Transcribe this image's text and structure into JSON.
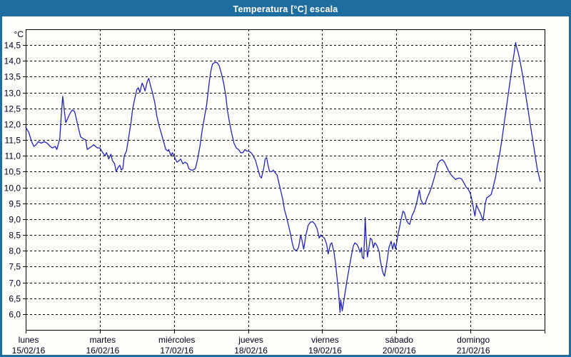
{
  "window": {
    "title": "Temperatura [°C] escala"
  },
  "colors": {
    "titlebar": "#1e6d9e",
    "window_border": "#1e6d9e",
    "line": "#2424b4",
    "grid": "#000000",
    "frame": "#000000",
    "text": "#00001e",
    "background": "#fdfdfa"
  },
  "chart_data": {
    "type": "line",
    "title": "Temperatura [°C] escala",
    "ylabel": "°C",
    "unit_label": "°C",
    "ylim": [
      5.5,
      15.0
    ],
    "xlim_days": [
      0,
      7
    ],
    "grid": "dashed",
    "legend_position": "none",
    "y_tick_values": [
      14.5,
      14.0,
      13.5,
      13.0,
      12.5,
      12.0,
      11.5,
      11.0,
      10.5,
      10.0,
      9.5,
      9.0,
      8.5,
      8.0,
      7.5,
      7.0,
      6.5,
      6.0
    ],
    "y_tick_labels": [
      "14,5",
      "14,0",
      "13,5",
      "13,0",
      "12,5",
      "12,0",
      "11,5",
      "11,0",
      "10,5",
      "10,0",
      "9,5",
      "9,0",
      "8,5",
      "8,0",
      "7,5",
      "7,0",
      "6,5",
      "6,0"
    ],
    "x_ticks": [
      {
        "day": "lunes",
        "date": "15/02/16"
      },
      {
        "day": "martes",
        "date": "16/02/16"
      },
      {
        "day": "miércoles",
        "date": "17/02/16"
      },
      {
        "day": "jueves",
        "date": "18/02/16"
      },
      {
        "day": "viernes",
        "date": "19/02/16"
      },
      {
        "day": "sábado",
        "date": "20/02/16"
      },
      {
        "day": "domingo",
        "date": "21/02/16"
      }
    ],
    "series": [
      {
        "name": "Temperatura [°C]",
        "x_unit": "days since lunes 15/02/16 00:00",
        "points": [
          [
            0.0,
            11.9
          ],
          [
            0.04,
            11.75
          ],
          [
            0.08,
            11.45
          ],
          [
            0.11,
            11.3
          ],
          [
            0.14,
            11.35
          ],
          [
            0.17,
            11.45
          ],
          [
            0.21,
            11.4
          ],
          [
            0.25,
            11.45
          ],
          [
            0.29,
            11.4
          ],
          [
            0.33,
            11.3
          ],
          [
            0.36,
            11.25
          ],
          [
            0.4,
            11.3
          ],
          [
            0.42,
            11.2
          ],
          [
            0.46,
            11.55
          ],
          [
            0.48,
            12.3
          ],
          [
            0.5,
            12.88
          ],
          [
            0.52,
            12.45
          ],
          [
            0.54,
            12.05
          ],
          [
            0.57,
            12.2
          ],
          [
            0.6,
            12.35
          ],
          [
            0.63,
            12.45
          ],
          [
            0.66,
            12.4
          ],
          [
            0.68,
            12.2
          ],
          [
            0.71,
            11.9
          ],
          [
            0.74,
            11.6
          ],
          [
            0.77,
            11.55
          ],
          [
            0.81,
            11.5
          ],
          [
            0.83,
            11.2
          ],
          [
            0.86,
            11.25
          ],
          [
            0.89,
            11.3
          ],
          [
            0.92,
            11.35
          ],
          [
            0.94,
            11.3
          ],
          [
            0.97,
            11.25
          ],
          [
            1.0,
            11.25
          ],
          [
            1.04,
            11.1
          ],
          [
            1.07,
            11.0
          ],
          [
            1.09,
            11.1
          ],
          [
            1.12,
            10.9
          ],
          [
            1.15,
            11.05
          ],
          [
            1.17,
            10.85
          ],
          [
            1.2,
            10.75
          ],
          [
            1.22,
            10.5
          ],
          [
            1.25,
            10.65
          ],
          [
            1.27,
            10.7
          ],
          [
            1.29,
            10.55
          ],
          [
            1.31,
            10.6
          ],
          [
            1.33,
            11.0
          ],
          [
            1.36,
            11.15
          ],
          [
            1.39,
            11.6
          ],
          [
            1.42,
            12.05
          ],
          [
            1.44,
            12.45
          ],
          [
            1.47,
            12.8
          ],
          [
            1.5,
            13.1
          ],
          [
            1.52,
            13.15
          ],
          [
            1.54,
            13.0
          ],
          [
            1.57,
            13.3
          ],
          [
            1.59,
            13.2
          ],
          [
            1.61,
            13.05
          ],
          [
            1.64,
            13.35
          ],
          [
            1.66,
            13.45
          ],
          [
            1.68,
            13.25
          ],
          [
            1.71,
            13.0
          ],
          [
            1.74,
            12.7
          ],
          [
            1.77,
            12.25
          ],
          [
            1.8,
            11.95
          ],
          [
            1.83,
            11.7
          ],
          [
            1.86,
            11.45
          ],
          [
            1.89,
            11.2
          ],
          [
            1.92,
            11.15
          ],
          [
            1.93,
            11.2
          ],
          [
            1.96,
            11.0
          ],
          [
            1.98,
            11.1
          ],
          [
            2.01,
            10.95
          ],
          [
            2.04,
            10.8
          ],
          [
            2.07,
            10.85
          ],
          [
            2.09,
            10.9
          ],
          [
            2.12,
            10.75
          ],
          [
            2.15,
            10.8
          ],
          [
            2.18,
            10.75
          ],
          [
            2.2,
            10.6
          ],
          [
            2.23,
            10.55
          ],
          [
            2.26,
            10.55
          ],
          [
            2.29,
            10.6
          ],
          [
            2.32,
            10.9
          ],
          [
            2.35,
            11.3
          ],
          [
            2.38,
            11.8
          ],
          [
            2.41,
            12.2
          ],
          [
            2.44,
            12.6
          ],
          [
            2.46,
            13.0
          ],
          [
            2.48,
            13.4
          ],
          [
            2.5,
            13.7
          ],
          [
            2.52,
            13.9
          ],
          [
            2.55,
            13.95
          ],
          [
            2.58,
            13.95
          ],
          [
            2.61,
            13.85
          ],
          [
            2.64,
            13.6
          ],
          [
            2.67,
            13.3
          ],
          [
            2.7,
            12.9
          ],
          [
            2.72,
            12.45
          ],
          [
            2.75,
            12.05
          ],
          [
            2.78,
            11.7
          ],
          [
            2.81,
            11.4
          ],
          [
            2.84,
            11.25
          ],
          [
            2.87,
            11.2
          ],
          [
            2.9,
            11.1
          ],
          [
            2.93,
            11.1
          ],
          [
            2.96,
            11.2
          ],
          [
            2.98,
            11.15
          ],
          [
            3.01,
            11.15
          ],
          [
            3.04,
            11.1
          ],
          [
            3.07,
            11.0
          ],
          [
            3.1,
            10.85
          ],
          [
            3.13,
            10.6
          ],
          [
            3.16,
            10.35
          ],
          [
            3.18,
            10.3
          ],
          [
            3.21,
            10.6
          ],
          [
            3.23,
            10.9
          ],
          [
            3.25,
            10.95
          ],
          [
            3.27,
            10.7
          ],
          [
            3.29,
            10.5
          ],
          [
            3.32,
            10.5
          ],
          [
            3.34,
            10.55
          ],
          [
            3.37,
            10.45
          ],
          [
            3.39,
            10.4
          ],
          [
            3.41,
            10.2
          ],
          [
            3.44,
            9.9
          ],
          [
            3.47,
            9.6
          ],
          [
            3.49,
            9.3
          ],
          [
            3.52,
            9.05
          ],
          [
            3.54,
            8.85
          ],
          [
            3.57,
            8.55
          ],
          [
            3.6,
            8.2
          ],
          [
            3.62,
            8.05
          ],
          [
            3.65,
            8.0
          ],
          [
            3.68,
            8.1
          ],
          [
            3.71,
            8.5
          ],
          [
            3.73,
            8.3
          ],
          [
            3.75,
            8.05
          ],
          [
            3.78,
            8.5
          ],
          [
            3.81,
            8.8
          ],
          [
            3.84,
            8.9
          ],
          [
            3.87,
            8.92
          ],
          [
            3.9,
            8.85
          ],
          [
            3.93,
            8.7
          ],
          [
            3.96,
            8.4
          ],
          [
            3.98,
            8.5
          ],
          [
            4.0,
            8.45
          ],
          [
            4.03,
            8.4
          ],
          [
            4.06,
            8.2
          ],
          [
            4.08,
            7.9
          ],
          [
            4.11,
            8.2
          ],
          [
            4.13,
            8.25
          ],
          [
            4.16,
            7.95
          ],
          [
            4.18,
            7.6
          ],
          [
            4.2,
            7.15
          ],
          [
            4.22,
            6.7
          ],
          [
            4.24,
            6.05
          ],
          [
            4.25,
            6.45
          ],
          [
            4.27,
            6.1
          ],
          [
            4.3,
            6.55
          ],
          [
            4.33,
            7.0
          ],
          [
            4.36,
            7.4
          ],
          [
            4.39,
            7.8
          ],
          [
            4.42,
            8.15
          ],
          [
            4.44,
            8.25
          ],
          [
            4.47,
            8.2
          ],
          [
            4.49,
            8.1
          ],
          [
            4.51,
            7.95
          ],
          [
            4.53,
            8.1
          ],
          [
            4.54,
            7.8
          ],
          [
            4.56,
            7.75
          ],
          [
            4.58,
            9.05
          ],
          [
            4.59,
            8.5
          ],
          [
            4.61,
            7.8
          ],
          [
            4.63,
            8.1
          ],
          [
            4.65,
            8.4
          ],
          [
            4.67,
            8.35
          ],
          [
            4.69,
            8.1
          ],
          [
            4.71,
            8.25
          ],
          [
            4.73,
            8.2
          ],
          [
            4.75,
            8.1
          ],
          [
            4.77,
            7.95
          ],
          [
            4.78,
            7.75
          ],
          [
            4.8,
            7.5
          ],
          [
            4.82,
            7.3
          ],
          [
            4.84,
            7.2
          ],
          [
            4.86,
            7.45
          ],
          [
            4.88,
            7.75
          ],
          [
            4.9,
            8.1
          ],
          [
            4.93,
            8.3
          ],
          [
            4.95,
            8.05
          ],
          [
            4.97,
            8.25
          ],
          [
            4.99,
            8.05
          ],
          [
            5.02,
            8.5
          ],
          [
            5.04,
            8.7
          ],
          [
            5.06,
            8.95
          ],
          [
            5.09,
            9.25
          ],
          [
            5.11,
            9.2
          ],
          [
            5.13,
            9.0
          ],
          [
            5.16,
            8.87
          ],
          [
            5.18,
            8.84
          ],
          [
            5.21,
            9.1
          ],
          [
            5.24,
            9.25
          ],
          [
            5.27,
            9.47
          ],
          [
            5.3,
            9.8
          ],
          [
            5.31,
            9.92
          ],
          [
            5.33,
            9.62
          ],
          [
            5.36,
            9.47
          ],
          [
            5.39,
            9.5
          ],
          [
            5.42,
            9.7
          ],
          [
            5.45,
            9.85
          ],
          [
            5.48,
            10.05
          ],
          [
            5.51,
            10.3
          ],
          [
            5.54,
            10.55
          ],
          [
            5.56,
            10.75
          ],
          [
            5.59,
            10.85
          ],
          [
            5.62,
            10.88
          ],
          [
            5.65,
            10.8
          ],
          [
            5.68,
            10.65
          ],
          [
            5.71,
            10.5
          ],
          [
            5.74,
            10.4
          ],
          [
            5.77,
            10.32
          ],
          [
            5.8,
            10.25
          ],
          [
            5.82,
            10.28
          ],
          [
            5.85,
            10.3
          ],
          [
            5.88,
            10.27
          ],
          [
            5.91,
            10.15
          ],
          [
            5.94,
            10.02
          ],
          [
            5.97,
            9.95
          ],
          [
            6.0,
            9.8
          ],
          [
            6.02,
            9.6
          ],
          [
            6.04,
            9.35
          ],
          [
            6.06,
            9.1
          ],
          [
            6.08,
            9.45
          ],
          [
            6.11,
            9.3
          ],
          [
            6.14,
            9.15
          ],
          [
            6.17,
            8.95
          ],
          [
            6.2,
            9.5
          ],
          [
            6.22,
            9.68
          ],
          [
            6.25,
            9.72
          ],
          [
            6.28,
            9.78
          ],
          [
            6.31,
            10.05
          ],
          [
            6.34,
            10.35
          ],
          [
            6.36,
            10.65
          ],
          [
            6.39,
            11.0
          ],
          [
            6.42,
            11.45
          ],
          [
            6.45,
            11.95
          ],
          [
            6.48,
            12.45
          ],
          [
            6.51,
            12.95
          ],
          [
            6.54,
            13.45
          ],
          [
            6.57,
            13.95
          ],
          [
            6.59,
            14.25
          ],
          [
            6.6,
            14.45
          ],
          [
            6.61,
            14.58
          ],
          [
            6.62,
            14.45
          ],
          [
            6.64,
            14.3
          ],
          [
            6.66,
            14.1
          ],
          [
            6.68,
            13.85
          ],
          [
            6.7,
            13.6
          ],
          [
            6.72,
            13.3
          ],
          [
            6.74,
            13.0
          ],
          [
            6.76,
            12.7
          ],
          [
            6.78,
            12.4
          ],
          [
            6.8,
            12.1
          ],
          [
            6.82,
            11.8
          ],
          [
            6.84,
            11.5
          ],
          [
            6.86,
            11.2
          ],
          [
            6.88,
            10.9
          ],
          [
            6.9,
            10.6
          ],
          [
            6.92,
            10.4
          ],
          [
            6.93,
            10.3
          ],
          [
            6.94,
            10.2
          ]
        ]
      }
    ]
  }
}
